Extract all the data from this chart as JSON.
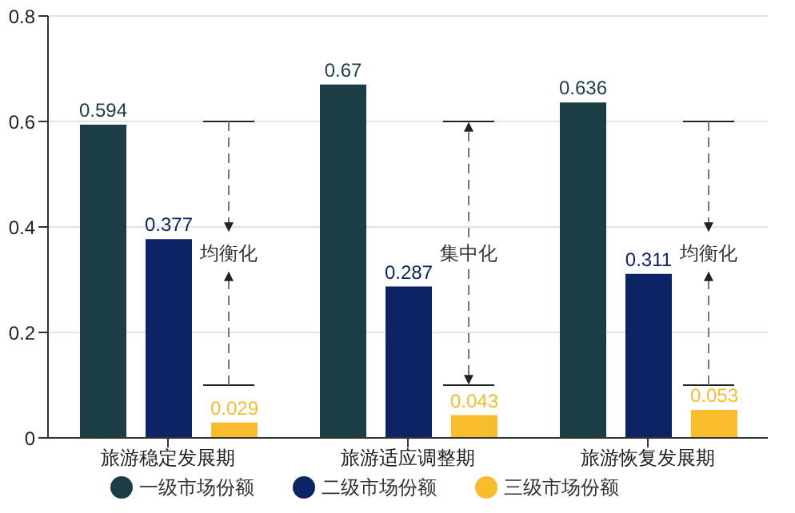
{
  "chart_data": {
    "type": "bar",
    "categories": [
      "旅游稳定发展期",
      "旅游适应调整期",
      "旅游恢复发展期"
    ],
    "series": [
      {
        "name": "一级市场份额",
        "color": "#1b3d45",
        "values": [
          0.594,
          0.67,
          0.636
        ]
      },
      {
        "name": "二级市场份额",
        "color": "#0c2366",
        "values": [
          0.377,
          0.287,
          0.311
        ]
      },
      {
        "name": "三级市场份额",
        "color": "#f9bc2d",
        "values": [
          0.029,
          0.043,
          0.053
        ]
      }
    ],
    "ylim": [
      0,
      0.8
    ],
    "yticks": [
      0,
      0.2,
      0.4,
      0.6,
      0.8
    ],
    "grid": "y",
    "legend": "bottom",
    "data_labels": true,
    "annotations": [
      "均衡化",
      "集中化",
      "均衡化"
    ]
  }
}
